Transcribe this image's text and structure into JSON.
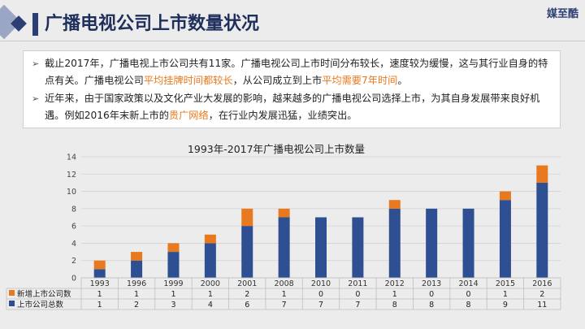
{
  "header": {
    "title": "广播电视公司上市数量状况",
    "brand": "媒至酷"
  },
  "body_text": {
    "p1": [
      {
        "text": "截止2017年，广播电视上市公司共有11家。广播电视公司上市时间分布较长，速度较为缓慢，这与其行业自身的特点有关。广播电视公司",
        "highlight": false
      },
      {
        "text": "平均挂牌时间都较长",
        "highlight": true
      },
      {
        "text": "，从公司成立到上市",
        "highlight": false
      },
      {
        "text": "平均需要7年时间",
        "highlight": true
      },
      {
        "text": "。",
        "highlight": false
      }
    ],
    "p2": [
      {
        "text": "近年来，由于国家政策以及文化产业大发展的影响，越来越多的广播电视公司选择上市，为其自身发展带来良好机遇。例如2016年末新上市的",
        "highlight": false
      },
      {
        "text": "贵广网络",
        "highlight": true
      },
      {
        "text": "，在行业内发展迅猛，业绩突出。",
        "highlight": false
      }
    ],
    "bullet_symbol": "➢",
    "highlight_color": "#e8791e"
  },
  "chart_data": {
    "type": "bar",
    "stacked": true,
    "title": "1993年-2017年广播电视公司上市数量",
    "categories": [
      "1993",
      "1996",
      "1999",
      "2000",
      "2001",
      "2008",
      "2010",
      "2011",
      "2012",
      "2013",
      "2014",
      "2015",
      "2016"
    ],
    "series": [
      {
        "name": "上市公司总数",
        "color": "#2f4f93",
        "values": [
          1,
          2,
          3,
          4,
          6,
          7,
          7,
          7,
          8,
          8,
          8,
          9,
          11
        ]
      },
      {
        "name": "新增上市公司数",
        "color": "#e8791e",
        "values": [
          1,
          1,
          1,
          1,
          2,
          1,
          0,
          0,
          1,
          0,
          0,
          1,
          2
        ]
      }
    ],
    "table_order": [
      1,
      0
    ],
    "ylim": [
      0,
      14
    ],
    "yticks": [
      0,
      2,
      4,
      6,
      8,
      10,
      12,
      14
    ],
    "grid": true,
    "legend": "data-table"
  }
}
